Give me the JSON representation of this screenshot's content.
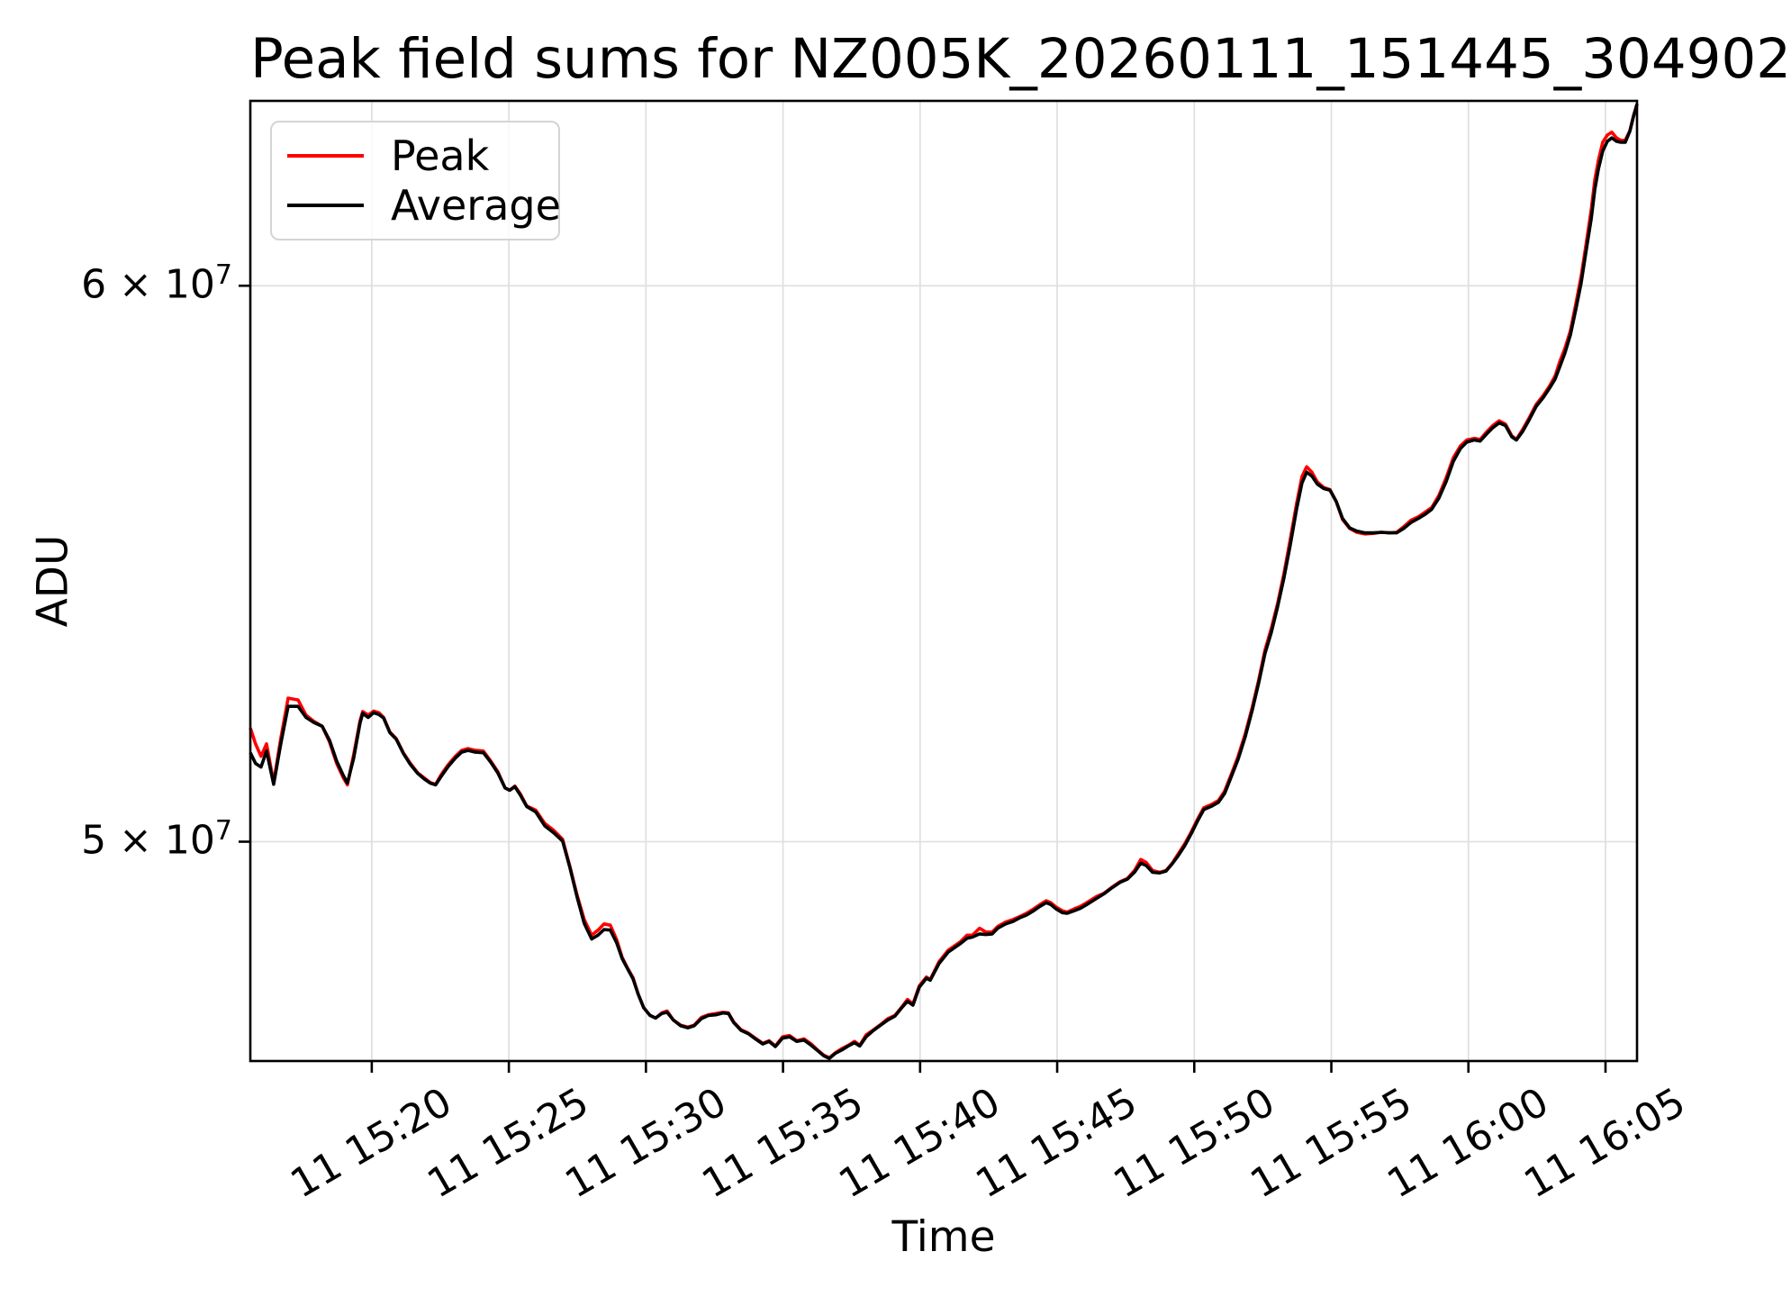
{
  "figure": {
    "title": "Peak field sums for NZ005K_20260111_151445_304902",
    "xlabel": "Time",
    "ylabel": "ADU"
  },
  "legend": {
    "entries": [
      {
        "label": "Peak",
        "color": "#ff0000"
      },
      {
        "label": "Average",
        "color": "#000000"
      }
    ]
  },
  "colors": {
    "peak": "#ff0000",
    "average": "#000000",
    "grid": "#e0e0e0",
    "spine": "#000000",
    "text": "#000000",
    "legend_border": "#d4d4d4"
  },
  "chart_data": {
    "type": "line",
    "title": "Peak field sums for NZ005K_20260111_151445_304902",
    "xlabel": "Time",
    "ylabel": "ADU",
    "y_scale": "log",
    "grid": true,
    "legend_position": "upper left",
    "x_unit": "minutes after 15:00 on day 11",
    "y_unit": "ADU x 1e7",
    "x_domain": [
      15.57,
      66.15
    ],
    "y_domain": [
      4.653,
      6.375
    ],
    "x_ticks": {
      "values": [
        20,
        25,
        30,
        35,
        40,
        45,
        50,
        55,
        60,
        65
      ],
      "labels": [
        "11 15:20",
        "11 15:25",
        "11 15:30",
        "11 15:35",
        "11 15:40",
        "11 15:45",
        "11 15:50",
        "11 15:55",
        "11 16:00",
        "11 16:05"
      ]
    },
    "y_ticks": {
      "values": [
        5,
        6
      ],
      "labels": [
        {
          "base": "5 × 10",
          "sup": "7"
        },
        {
          "base": "6 × 10",
          "sup": "7"
        }
      ]
    },
    "x": [
      15.57,
      15.76,
      15.96,
      16.16,
      16.42,
      16.68,
      16.95,
      17.31,
      17.6,
      17.9,
      18.19,
      18.46,
      18.72,
      18.95,
      19.11,
      19.34,
      19.57,
      19.67,
      19.87,
      20.07,
      20.26,
      20.43,
      20.66,
      20.89,
      21.15,
      21.41,
      21.68,
      21.91,
      22.13,
      22.33,
      22.53,
      22.79,
      23.05,
      23.28,
      23.51,
      23.78,
      24.07,
      24.34,
      24.6,
      24.86,
      25.03,
      25.22,
      25.42,
      25.65,
      25.98,
      26.31,
      26.63,
      26.96,
      27.23,
      27.49,
      27.75,
      28.02,
      28.25,
      28.47,
      28.7,
      28.93,
      29.13,
      29.33,
      29.53,
      29.72,
      29.92,
      30.15,
      30.35,
      30.58,
      30.77,
      31.0,
      31.27,
      31.53,
      31.76,
      32.02,
      32.28,
      32.55,
      32.81,
      33.01,
      33.2,
      33.47,
      33.73,
      33.99,
      34.26,
      34.49,
      34.72,
      34.98,
      35.24,
      35.5,
      35.77,
      36.03,
      36.26,
      36.49,
      36.69,
      36.92,
      37.15,
      37.38,
      37.61,
      37.8,
      38.03,
      38.3,
      38.56,
      38.82,
      39.08,
      39.31,
      39.54,
      39.74,
      39.97,
      40.23,
      40.37,
      40.69,
      41.02,
      41.25,
      41.48,
      41.71,
      41.91,
      42.17,
      42.4,
      42.63,
      42.83,
      43.12,
      43.39,
      43.65,
      43.88,
      44.14,
      44.37,
      44.6,
      44.77,
      44.96,
      45.19,
      45.36,
      45.62,
      45.85,
      46.08,
      46.44,
      46.7,
      47.0,
      47.3,
      47.56,
      47.82,
      48.05,
      48.25,
      48.48,
      48.74,
      48.97,
      49.2,
      49.43,
      49.66,
      49.89,
      50.12,
      50.35,
      50.61,
      50.88,
      51.11,
      51.37,
      51.6,
      51.86,
      52.12,
      52.35,
      52.58,
      52.81,
      53.04,
      53.27,
      53.5,
      53.73,
      53.93,
      54.1,
      54.29,
      54.49,
      54.72,
      54.95,
      55.18,
      55.41,
      55.67,
      55.93,
      56.23,
      56.53,
      56.82,
      57.12,
      57.38,
      57.64,
      57.91,
      58.17,
      58.43,
      58.66,
      58.92,
      59.19,
      59.45,
      59.71,
      59.94,
      60.21,
      60.43,
      60.66,
      60.89,
      61.12,
      61.35,
      61.58,
      61.75,
      61.98,
      62.21,
      62.47,
      62.73,
      62.96,
      63.16,
      63.33,
      63.52,
      63.72,
      63.92,
      64.11,
      64.31,
      64.48,
      64.61,
      64.74,
      64.9,
      65.07,
      65.23,
      65.4,
      65.56,
      65.72,
      65.89,
      66.02,
      66.15
    ],
    "series": [
      {
        "name": "Peak",
        "color": "#ff0000",
        "values": [
          5.19,
          5.163,
          5.142,
          5.163,
          5.098,
          5.172,
          5.241,
          5.238,
          5.212,
          5.201,
          5.193,
          5.166,
          5.13,
          5.107,
          5.094,
          5.145,
          5.202,
          5.218,
          5.212,
          5.219,
          5.216,
          5.208,
          5.183,
          5.172,
          5.148,
          5.13,
          5.114,
          5.106,
          5.098,
          5.095,
          5.111,
          5.128,
          5.142,
          5.152,
          5.155,
          5.152,
          5.151,
          5.134,
          5.116,
          5.089,
          5.085,
          5.092,
          5.079,
          5.059,
          5.052,
          5.03,
          5.019,
          5.004,
          4.959,
          4.913,
          4.874,
          4.849,
          4.857,
          4.867,
          4.865,
          4.842,
          4.814,
          4.797,
          4.782,
          4.756,
          4.735,
          4.723,
          4.719,
          4.727,
          4.73,
          4.716,
          4.708,
          4.705,
          4.708,
          4.72,
          4.724,
          4.726,
          4.728,
          4.727,
          4.713,
          4.701,
          4.696,
          4.688,
          4.68,
          4.684,
          4.676,
          4.69,
          4.692,
          4.684,
          4.687,
          4.679,
          4.67,
          4.662,
          4.658,
          4.666,
          4.672,
          4.677,
          4.683,
          4.677,
          4.693,
          4.701,
          4.709,
          4.718,
          4.723,
          4.735,
          4.748,
          4.741,
          4.769,
          4.783,
          4.779,
          4.807,
          4.825,
          4.832,
          4.839,
          4.849,
          4.849,
          4.86,
          4.854,
          4.854,
          4.863,
          4.87,
          4.874,
          4.879,
          4.884,
          4.891,
          4.898,
          4.904,
          4.901,
          4.894,
          4.888,
          4.886,
          4.891,
          4.895,
          4.901,
          4.911,
          4.916,
          4.926,
          4.935,
          4.94,
          4.953,
          4.971,
          4.966,
          4.953,
          4.95,
          4.953,
          4.965,
          4.981,
          4.997,
          5.016,
          5.037,
          5.056,
          5.061,
          5.068,
          5.084,
          5.114,
          5.142,
          5.18,
          5.226,
          5.272,
          5.324,
          5.362,
          5.406,
          5.459,
          5.52,
          5.586,
          5.636,
          5.654,
          5.644,
          5.626,
          5.616,
          5.612,
          5.59,
          5.557,
          5.541,
          5.534,
          5.531,
          5.532,
          5.534,
          5.533,
          5.534,
          5.544,
          5.556,
          5.562,
          5.571,
          5.579,
          5.601,
          5.634,
          5.671,
          5.693,
          5.704,
          5.707,
          5.705,
          5.719,
          5.731,
          5.74,
          5.734,
          5.712,
          5.705,
          5.724,
          5.745,
          5.771,
          5.788,
          5.806,
          5.825,
          5.852,
          5.878,
          5.912,
          5.965,
          6.018,
          6.089,
          6.152,
          6.212,
          6.252,
          6.289,
          6.304,
          6.31,
          6.298,
          6.293,
          6.293,
          6.313,
          6.343,
          6.369
        ]
      },
      {
        "name": "Average",
        "color": "#000000",
        "values": [
          5.148,
          5.13,
          5.124,
          5.151,
          5.095,
          5.163,
          5.227,
          5.227,
          5.208,
          5.199,
          5.193,
          5.169,
          5.134,
          5.111,
          5.097,
          5.139,
          5.198,
          5.215,
          5.208,
          5.216,
          5.213,
          5.207,
          5.182,
          5.171,
          5.147,
          5.128,
          5.113,
          5.104,
          5.097,
          5.094,
          5.108,
          5.125,
          5.139,
          5.149,
          5.152,
          5.149,
          5.148,
          5.132,
          5.114,
          5.089,
          5.085,
          5.091,
          5.077,
          5.058,
          5.049,
          5.026,
          5.015,
          5.001,
          4.957,
          4.91,
          4.868,
          4.843,
          4.849,
          4.858,
          4.857,
          4.837,
          4.812,
          4.796,
          4.78,
          4.756,
          4.735,
          4.723,
          4.719,
          4.726,
          4.728,
          4.716,
          4.707,
          4.704,
          4.707,
          4.718,
          4.723,
          4.724,
          4.727,
          4.726,
          4.712,
          4.7,
          4.695,
          4.687,
          4.679,
          4.683,
          4.675,
          4.688,
          4.69,
          4.683,
          4.685,
          4.677,
          4.669,
          4.661,
          4.657,
          4.665,
          4.67,
          4.676,
          4.681,
          4.676,
          4.69,
          4.7,
          4.708,
          4.716,
          4.722,
          4.734,
          4.745,
          4.739,
          4.767,
          4.781,
          4.778,
          4.804,
          4.822,
          4.829,
          4.836,
          4.844,
          4.846,
          4.851,
          4.85,
          4.851,
          4.86,
          4.867,
          4.871,
          4.877,
          4.881,
          4.888,
          4.895,
          4.901,
          4.898,
          4.891,
          4.885,
          4.884,
          4.888,
          4.892,
          4.898,
          4.908,
          4.915,
          4.925,
          4.934,
          4.939,
          4.95,
          4.965,
          4.961,
          4.95,
          4.949,
          4.952,
          4.964,
          4.978,
          4.994,
          5.013,
          5.034,
          5.053,
          5.058,
          5.065,
          5.08,
          5.11,
          5.137,
          5.175,
          5.221,
          5.267,
          5.318,
          5.355,
          5.4,
          5.451,
          5.51,
          5.576,
          5.624,
          5.644,
          5.637,
          5.622,
          5.614,
          5.611,
          5.59,
          5.559,
          5.542,
          5.536,
          5.533,
          5.533,
          5.534,
          5.533,
          5.533,
          5.541,
          5.552,
          5.559,
          5.567,
          5.576,
          5.596,
          5.627,
          5.664,
          5.688,
          5.7,
          5.704,
          5.702,
          5.715,
          5.727,
          5.736,
          5.731,
          5.71,
          5.704,
          5.72,
          5.741,
          5.767,
          5.784,
          5.802,
          5.819,
          5.842,
          5.869,
          5.904,
          5.954,
          6.005,
          6.075,
          6.134,
          6.192,
          6.234,
          6.271,
          6.291,
          6.298,
          6.291,
          6.289,
          6.289,
          6.312,
          6.342,
          6.368
        ]
      }
    ]
  }
}
